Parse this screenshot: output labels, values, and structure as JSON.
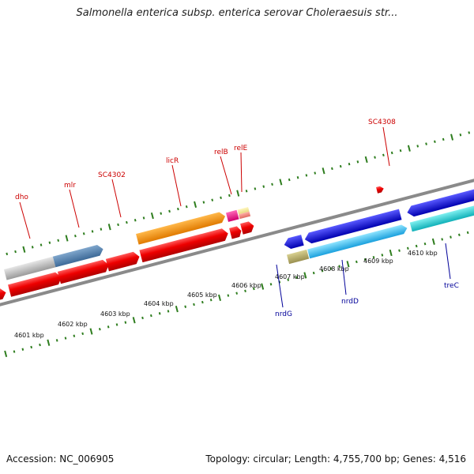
{
  "title": "Salmonella enterica subsp. enterica serovar Choleraesuis str...",
  "footer": {
    "accession": "Accession: NC_006905",
    "stats": "Topology: circular; Length: 4,755,700 bp; Genes: 4,516"
  },
  "colors": {
    "backbone": "#8a8a8a",
    "tick": "#2e7d1e",
    "forward_label": "#cc0000",
    "reverse_label": "#000099"
  },
  "axis_labels": [
    "4601 kbp",
    "4602 kbp",
    "4603 kbp",
    "4604 kbp",
    "4605 kbp",
    "4606 kbp",
    "4607 kbp",
    "4608 kbp",
    "4609 kbp",
    "4610 kbp"
  ],
  "forward_labels": [
    "dho",
    "mlr",
    "SC4302",
    "licR",
    "relB",
    "relE",
    "SC4308"
  ],
  "reverse_labels": [
    "nrdG",
    "nrdD",
    "treC"
  ]
}
